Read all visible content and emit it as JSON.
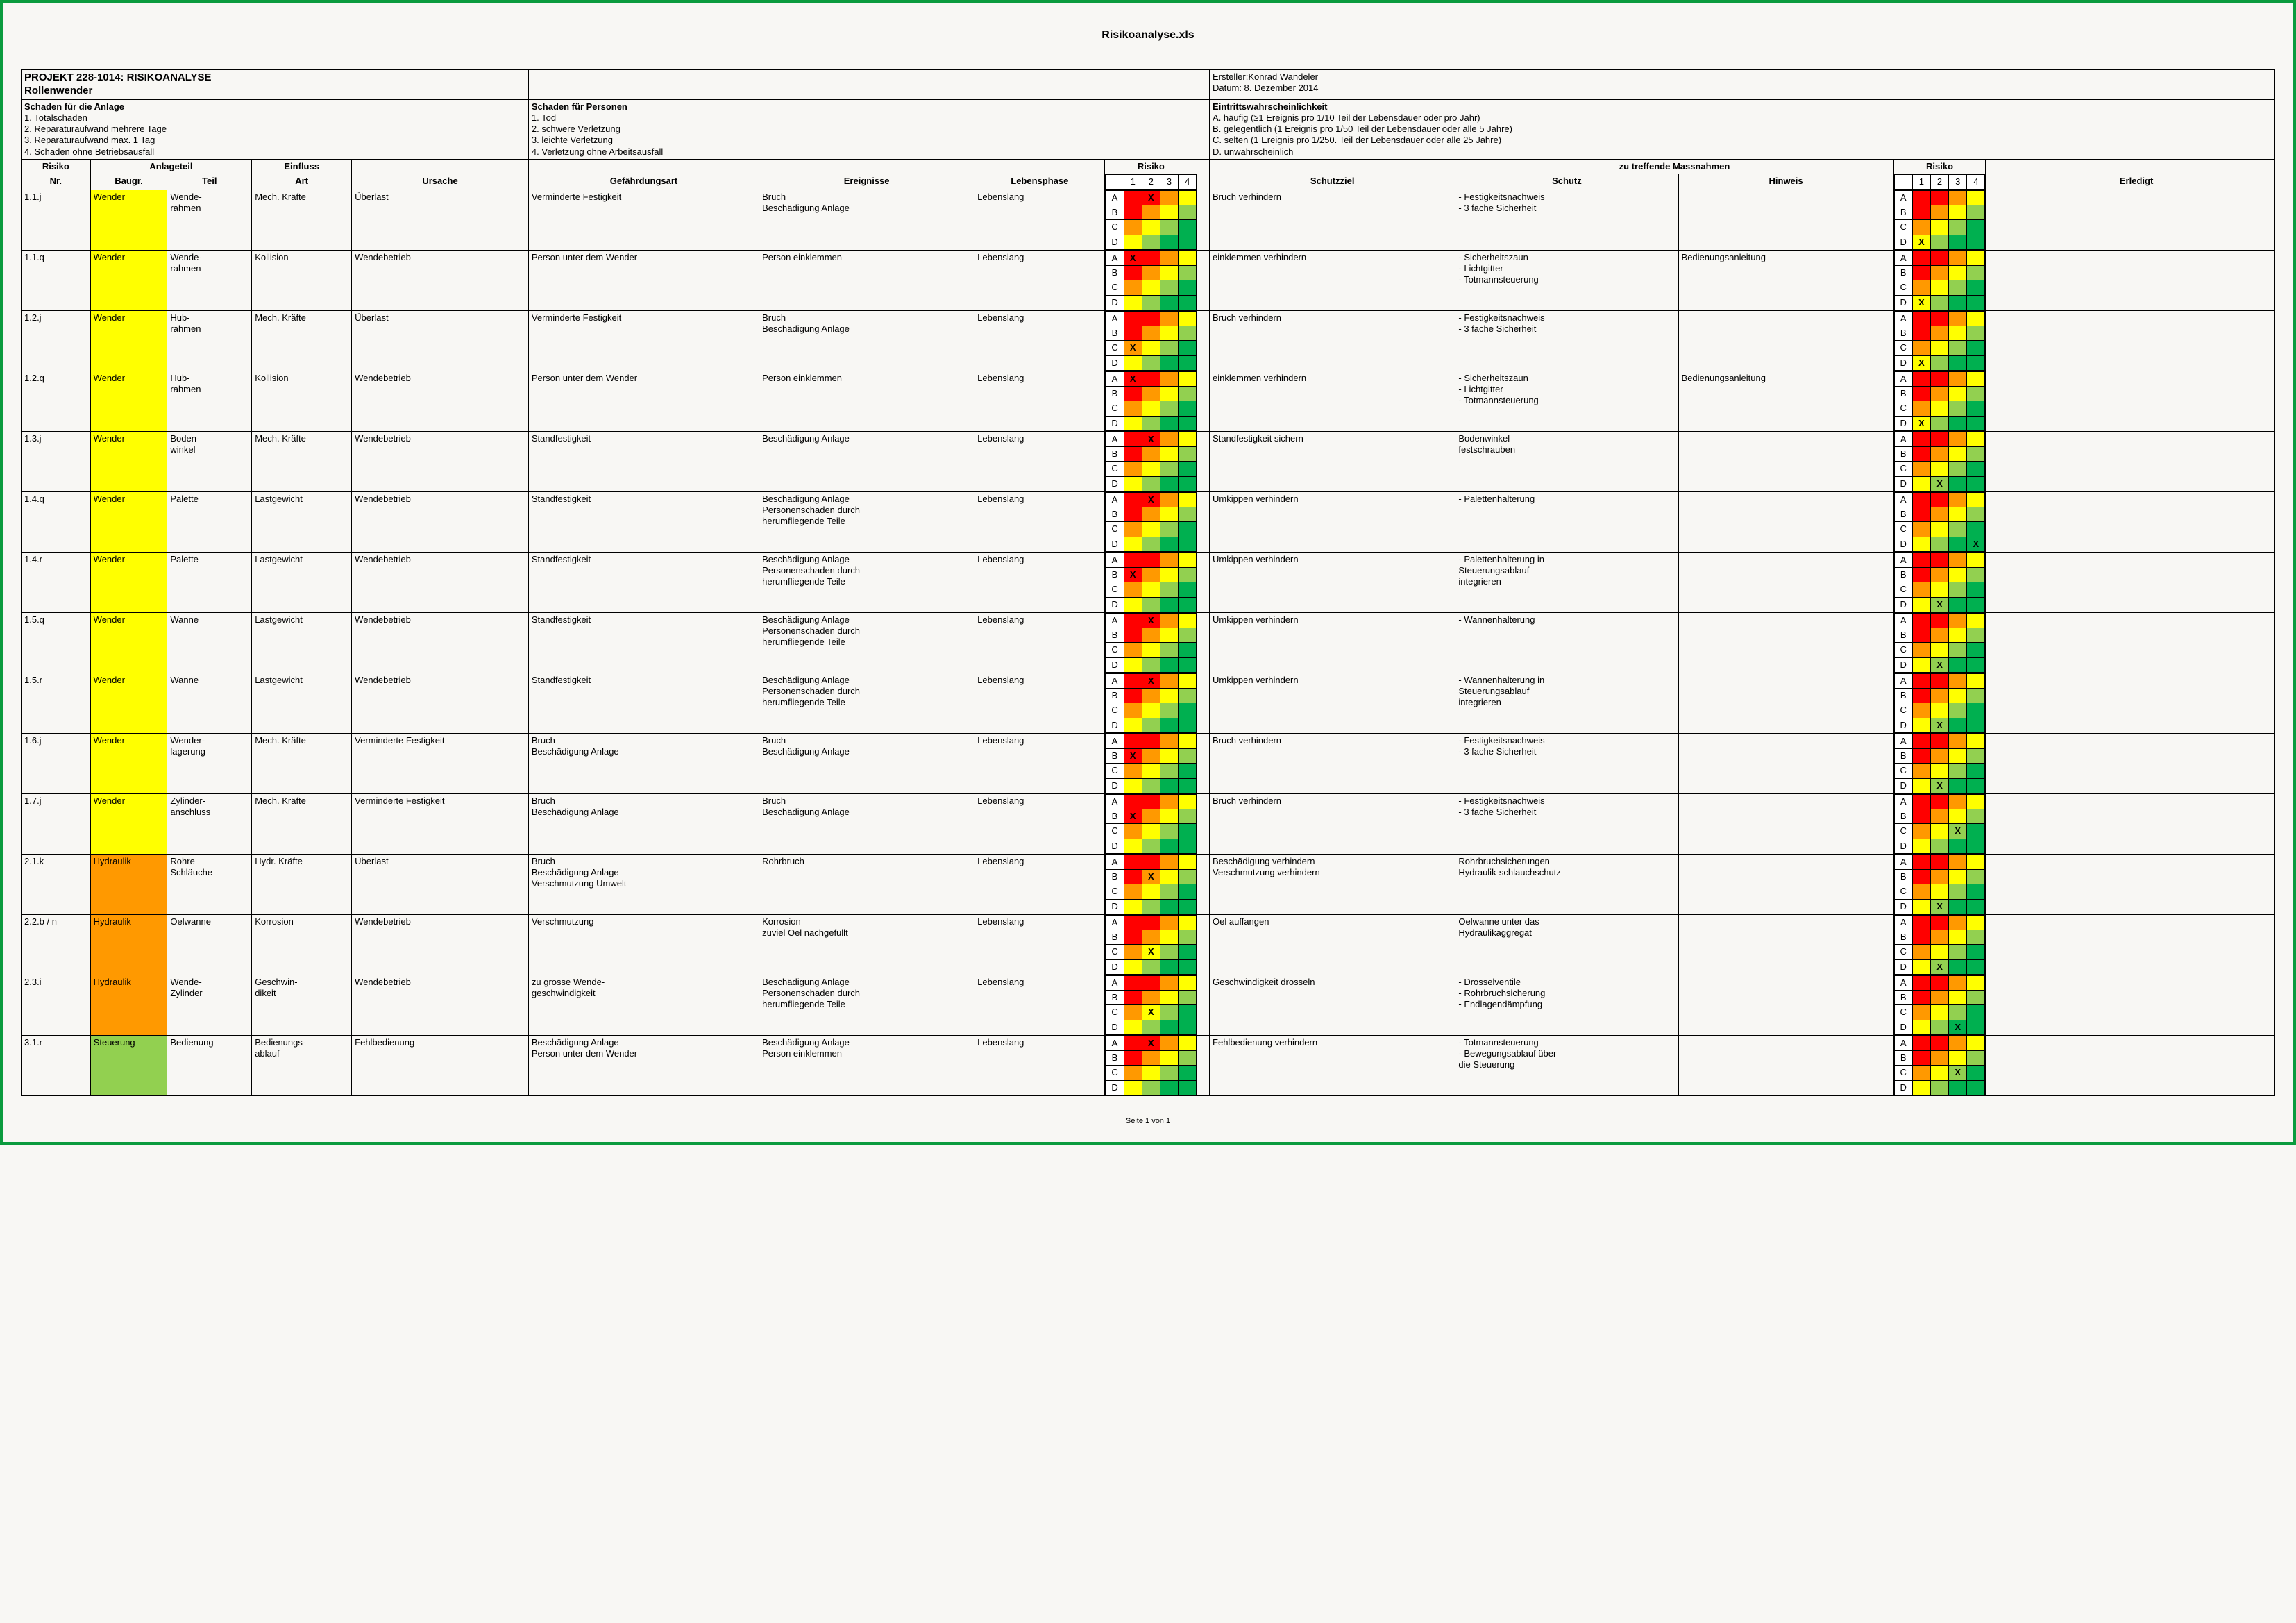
{
  "doc": {
    "filename": "Risikoanalyse.xls",
    "footer": "Seite 1 von 1"
  },
  "header": {
    "project_line1": "PROJEKT 228-1014: RISIKOANALYSE",
    "project_line2": "Rollenwender",
    "creator_label": "Ersteller:",
    "creator": "Konrad Wandeler",
    "date_label": "Datum:",
    "date": "8. Dezember 2014",
    "anlage_title": "Schaden für die Anlage",
    "anlage_items": [
      "1. Totalschaden",
      "2. Reparaturaufwand mehrere Tage",
      "3. Reparaturaufwand max. 1 Tag",
      "4. Schaden ohne Betriebsausfall"
    ],
    "person_title": "Schaden für Personen",
    "person_items": [
      "1. Tod",
      "2. schwere Verletzung",
      "3. leichte Verletzung",
      "4. Verletzung ohne Arbeitsausfall"
    ],
    "prob_title": "Eintrittswahrscheinlichkeit",
    "prob_items": [
      "A. häufig (≥1 Ereignis pro 1/10 Teil der Lebensdauer oder pro Jahr)",
      "B. gelegentlich (1 Ereignis pro 1/50 Teil der Lebensdauer oder alle 5 Jahre)",
      "C. selten (1 Ereignis pro 1/250. Teil der Lebensdauer oder alle 25 Jahre)",
      "D. unwahrscheinlich"
    ]
  },
  "columns": {
    "risiko_nr": "Risiko\nNr.",
    "anlageteil": "Anlageteil",
    "baugr": "Baugr.",
    "teil": "Teil",
    "einfluss": "Einfluss",
    "art": "Art",
    "ursache": "Ursache",
    "gefaehrdung": "Gefährdungsart",
    "ereignisse": "Ereignisse",
    "lebensphase": "Lebensphase",
    "risiko": "Risiko",
    "schutzziel": "Schutzziel",
    "massnahmen": "zu treffende Massnahmen",
    "schutz": "Schutz",
    "hinweis": "Hinweis",
    "risiko2": "Risiko",
    "erledigt": "Erledigt",
    "matrix_cols": [
      "1",
      "2",
      "3",
      "4"
    ],
    "matrix_rows": [
      "A",
      "B",
      "C",
      "D"
    ]
  },
  "risk_colors": {
    "red": "#ff0000",
    "orange": "#ff9900",
    "yellow": "#ffff00",
    "lgreen": "#92d050",
    "green": "#00b050"
  },
  "matrix_before": [
    [
      "red",
      "red",
      "orange",
      "yellow"
    ],
    [
      "red",
      "orange",
      "yellow",
      "lgreen"
    ],
    [
      "orange",
      "yellow",
      "lgreen",
      "green"
    ],
    [
      "yellow",
      "lgreen",
      "green",
      "green"
    ]
  ],
  "matrix_after": [
    [
      "red",
      "red",
      "orange",
      "yellow"
    ],
    [
      "red",
      "orange",
      "yellow",
      "lgreen"
    ],
    [
      "orange",
      "yellow",
      "lgreen",
      "green"
    ],
    [
      "yellow",
      "lgreen",
      "green",
      "green"
    ]
  ],
  "baugr_colors": {
    "Wender": "#ffff00",
    "Hydraulik": "#ff9900",
    "Steuerung": "#92d050"
  },
  "rows": [
    {
      "nr": "1.1.j",
      "baugr": "Wender",
      "teil": "Wende-\nrahmen",
      "art": "Mech. Kräfte",
      "ursache": "Überlast",
      "gef": "Verminderte Festigkeit",
      "ereig": "Bruch\nBeschädigung Anlage",
      "phase": "Lebenslang",
      "mark1": [
        0,
        1
      ],
      "ziel": "Bruch verhindern",
      "schutz": "- Festigkeitsnachweis\n- 3 fache Sicherheit",
      "hinweis": "",
      "mark2": [
        3,
        0
      ]
    },
    {
      "nr": "1.1.q",
      "baugr": "Wender",
      "teil": "Wende-\nrahmen",
      "art": "Kollision",
      "ursache": "Wendebetrieb",
      "gef": "Person unter dem Wender",
      "ereig": "Person einklemmen",
      "phase": "Lebenslang",
      "mark1": [
        0,
        0
      ],
      "ziel": "einklemmen verhindern",
      "schutz": "- Sicherheitszaun\n- Lichtgitter\n- Totmannsteuerung",
      "hinweis": "Bedienungsanleitung",
      "mark2": [
        3,
        0
      ]
    },
    {
      "nr": "1.2.j",
      "baugr": "Wender",
      "teil": "Hub-\nrahmen",
      "art": "Mech. Kräfte",
      "ursache": "Überlast",
      "gef": "Verminderte Festigkeit",
      "ereig": "Bruch\nBeschädigung Anlage",
      "phase": "Lebenslang",
      "mark1": [
        2,
        0
      ],
      "ziel": "Bruch verhindern",
      "schutz": "- Festigkeitsnachweis\n- 3 fache Sicherheit",
      "hinweis": "",
      "mark2": [
        3,
        0
      ]
    },
    {
      "nr": "1.2.q",
      "baugr": "Wender",
      "teil": "Hub-\nrahmen",
      "art": "Kollision",
      "ursache": "Wendebetrieb",
      "gef": "Person unter dem Wender",
      "ereig": "Person einklemmen",
      "phase": "Lebenslang",
      "mark1": [
        0,
        0
      ],
      "ziel": "einklemmen verhindern",
      "schutz": "- Sicherheitszaun\n- Lichtgitter\n- Totmannsteuerung",
      "hinweis": "Bedienungsanleitung",
      "mark2": [
        3,
        0
      ]
    },
    {
      "nr": "1.3.j",
      "baugr": "Wender",
      "teil": "Boden-\nwinkel",
      "art": "Mech. Kräfte",
      "ursache": "Wendebetrieb",
      "gef": "Standfestigkeit",
      "ereig": "Beschädigung Anlage",
      "phase": "Lebenslang",
      "mark1": [
        0,
        1
      ],
      "ziel": "Standfestigkeit sichern",
      "schutz": "Bodenwinkel\nfestschrauben",
      "hinweis": "",
      "mark2": [
        3,
        1
      ]
    },
    {
      "nr": "1.4.q",
      "baugr": "Wender",
      "teil": "Palette",
      "art": "Lastgewicht",
      "ursache": "Wendebetrieb",
      "gef": "Standfestigkeit",
      "ereig": "Beschädigung Anlage\nPersonenschaden durch\nherumfliegende Teile",
      "phase": "Lebenslang",
      "mark1": [
        0,
        1
      ],
      "ziel": "Umkippen verhindern",
      "schutz": "- Palettenhalterung",
      "hinweis": "",
      "mark2": [
        3,
        3
      ]
    },
    {
      "nr": "1.4.r",
      "baugr": "Wender",
      "teil": "Palette",
      "art": "Lastgewicht",
      "ursache": "Wendebetrieb",
      "gef": "Standfestigkeit",
      "ereig": "Beschädigung Anlage\nPersonenschaden durch\nherumfliegende Teile",
      "phase": "Lebenslang",
      "mark1": [
        1,
        0
      ],
      "ziel": "Umkippen verhindern",
      "schutz": "- Palettenhalterung in\nSteuerungsablauf\nintegrieren",
      "hinweis": "",
      "mark2": [
        3,
        1
      ]
    },
    {
      "nr": "1.5.q",
      "baugr": "Wender",
      "teil": "Wanne",
      "art": "Lastgewicht",
      "ursache": "Wendebetrieb",
      "gef": "Standfestigkeit",
      "ereig": "Beschädigung Anlage\nPersonenschaden durch\nherumfliegende Teile",
      "phase": "Lebenslang",
      "mark1": [
        0,
        1
      ],
      "ziel": "Umkippen verhindern",
      "schutz": "- Wannenhalterung",
      "hinweis": "",
      "mark2": [
        3,
        1
      ]
    },
    {
      "nr": "1.5.r",
      "baugr": "Wender",
      "teil": "Wanne",
      "art": "Lastgewicht",
      "ursache": "Wendebetrieb",
      "gef": "Standfestigkeit",
      "ereig": "Beschädigung Anlage\nPersonenschaden durch\nherumfliegende Teile",
      "phase": "Lebenslang",
      "mark1": [
        0,
        1
      ],
      "ziel": "Umkippen verhindern",
      "schutz": "- Wannenhalterung in\nSteuerungsablauf\nintegrieren",
      "hinweis": "",
      "mark2": [
        3,
        1
      ]
    },
    {
      "nr": "1.6.j",
      "baugr": "Wender",
      "teil": "Wender-\nlagerung",
      "art": "Mech. Kräfte",
      "ursache": "Verminderte Festigkeit",
      "gef": "Bruch\nBeschädigung Anlage",
      "ereig": "Bruch\nBeschädigung Anlage",
      "phase": "Lebenslang",
      "mark1": [
        1,
        0
      ],
      "ziel": "Bruch verhindern",
      "schutz": "- Festigkeitsnachweis\n- 3 fache Sicherheit",
      "hinweis": "",
      "mark2": [
        3,
        1
      ]
    },
    {
      "nr": "1.7.j",
      "baugr": "Wender",
      "teil": "Zylinder-\nanschluss",
      "art": "Mech. Kräfte",
      "ursache": "Verminderte Festigkeit",
      "gef": "Bruch\nBeschädigung Anlage",
      "ereig": "Bruch\nBeschädigung Anlage",
      "phase": "Lebenslang",
      "mark1": [
        1,
        0
      ],
      "ziel": "Bruch verhindern",
      "schutz": "- Festigkeitsnachweis\n- 3 fache Sicherheit",
      "hinweis": "",
      "mark2": [
        2,
        2
      ]
    },
    {
      "nr": "2.1.k",
      "baugr": "Hydraulik",
      "teil": "Rohre\nSchläuche",
      "art": "Hydr. Kräfte",
      "ursache": "Überlast",
      "gef": "Bruch\nBeschädigung Anlage\nVerschmutzung Umwelt",
      "ereig": "Rohrbruch",
      "phase": "Lebenslang",
      "mark1": [
        1,
        1
      ],
      "ziel": "Beschädigung verhindern\nVerschmutzung verhindern",
      "schutz": "Rohrbruchsicherungen\nHydraulik-schlauchschutz",
      "hinweis": "",
      "mark2": [
        3,
        1
      ]
    },
    {
      "nr": "2.2.b / n",
      "baugr": "Hydraulik",
      "teil": "Oelwanne",
      "art": "Korrosion",
      "ursache": "Wendebetrieb",
      "gef": "Verschmutzung",
      "ereig": "Korrosion\nzuviel Oel nachgefüllt",
      "phase": "Lebenslang",
      "mark1": [
        2,
        1
      ],
      "ziel": "Oel auffangen",
      "schutz": "Oelwanne unter das\nHydraulikaggregat",
      "hinweis": "",
      "mark2": [
        3,
        1
      ]
    },
    {
      "nr": "2.3.i",
      "baugr": "Hydraulik",
      "teil": "Wende-\nZylinder",
      "art": "Geschwin-\ndikeit",
      "ursache": "Wendebetrieb",
      "gef": "zu grosse Wende-\ngeschwindigkeit",
      "ereig": "Beschädigung Anlage\nPersonenschaden durch\nherumfliegende Teile",
      "phase": "Lebenslang",
      "mark1": [
        2,
        1
      ],
      "ziel": "Geschwindigkeit drosseln",
      "schutz": "- Drosselventile\n- Rohrbruchsicherung\n- Endlagendämpfung",
      "hinweis": "",
      "mark2": [
        3,
        2
      ]
    },
    {
      "nr": "3.1.r",
      "baugr": "Steuerung",
      "teil": "Bedienung",
      "art": "Bedienungs-\nablauf",
      "ursache": "Fehlbedienung",
      "gef": "Beschädigung Anlage\nPerson unter dem Wender",
      "ereig": "Beschädigung Anlage\nPerson einklemmen",
      "phase": "Lebenslang",
      "mark1": [
        0,
        1
      ],
      "ziel": "Fehlbedienung verhindern",
      "schutz": "- Totmannsteuerung\n- Bewegungsablauf über\ndie Steuerung",
      "hinweis": "",
      "mark2": [
        2,
        2
      ]
    }
  ],
  "col_widths": {
    "nr": 90,
    "baugr": 100,
    "teil": 110,
    "art": 130,
    "ursache": 230,
    "gef": 300,
    "ereig": 280,
    "phase": 170,
    "risk": 120,
    "ziel": 320,
    "schutz": 290,
    "hinweis": 280,
    "risk2": 120,
    "erledigt": 360,
    "spacer": 16
  }
}
